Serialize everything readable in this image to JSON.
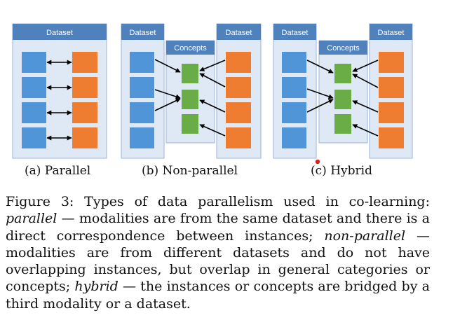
{
  "diagram": {
    "dataset_label": "Dataset",
    "concepts_label": "Concepts",
    "panels": [
      {
        "id": "a",
        "caption": "(a) Parallel"
      },
      {
        "id": "b",
        "caption": "(b) Non-parallel"
      },
      {
        "id": "c",
        "caption": "(c) Hybrid"
      }
    ],
    "colors": {
      "panel_fill": "#dfe9f5",
      "panel_border": "#9ab5d8",
      "header_fill": "#4f81bd",
      "blue_box": "#4f95d8",
      "orange_box": "#ef7d31",
      "green_box": "#6aac45",
      "arrow": "#000000",
      "dot": "#e0201e"
    }
  },
  "caption": {
    "s1": "Figure 3:  Types of data parallelism used in co-learning: ",
    "t1": "parallel",
    "s2": " — modalities are from the same dataset and there is a direct correspondence between instances; ",
    "t2": "non-parallel",
    "s3": " — modalities are from different datasets and do not have overlapping instances, but overlap in general categories or concepts; ",
    "t3": "hybrid",
    "s4": " — the instances or concepts are bridged by a third modality or a dataset."
  }
}
